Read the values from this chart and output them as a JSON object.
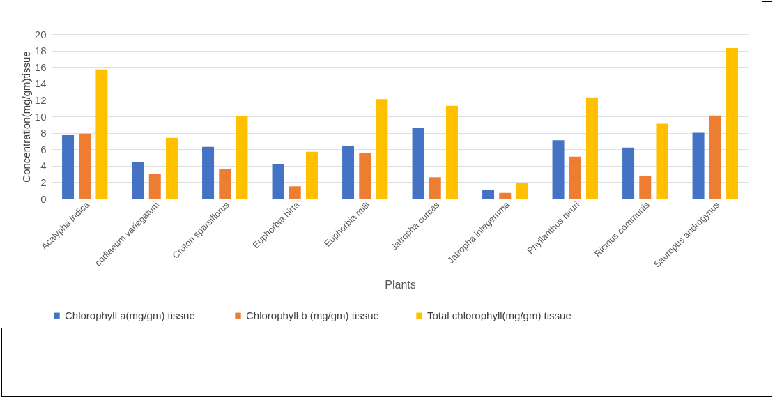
{
  "chart_data": {
    "type": "bar",
    "xlabel": "Plants",
    "ylabel": "Concentration(mg/gm)tissue",
    "categories": [
      "Acalypha indica",
      "codiaeum variegatum",
      "Croton sparsiflorus",
      "Euphorbia hirta",
      "Euphorbia milli",
      "Jatropha curcas",
      "Jatropha integerrima",
      "Phyllanthus niruri",
      "Ricinus communis",
      "Sauropus androgynus"
    ],
    "series": [
      {
        "name": "Chlorophyll  a(mg/gm) tissue",
        "color": "#4472c4",
        "values": [
          7.8,
          4.4,
          6.3,
          4.2,
          6.4,
          8.6,
          1.1,
          7.1,
          6.2,
          8.0
        ]
      },
      {
        "name": "Chlorophyll b (mg/gm) tissue",
        "color": "#ed7d31",
        "values": [
          7.9,
          3.0,
          3.6,
          1.5,
          5.6,
          2.6,
          0.7,
          5.1,
          2.8,
          10.1
        ]
      },
      {
        "name": "Total chlorophyll(mg/gm) tissue",
        "color": "#ffc000",
        "values": [
          15.7,
          7.4,
          10.0,
          5.7,
          12.1,
          11.3,
          1.9,
          12.3,
          9.1,
          18.3
        ]
      }
    ],
    "ylim": [
      0,
      20
    ],
    "yticks": [
      0,
      2,
      4,
      6,
      8,
      10,
      12,
      14,
      16,
      18,
      20
    ],
    "grid": "y",
    "legend": "bottom"
  }
}
